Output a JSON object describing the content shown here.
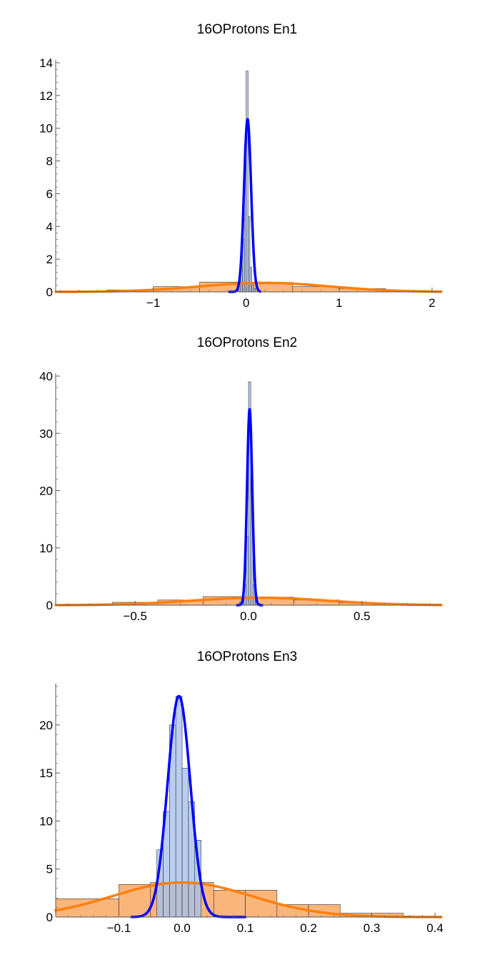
{
  "colors": {
    "orange_fill": "#f9ad6b",
    "orange_line": "#ff7f0e",
    "blue_fill": "#a8c1ed",
    "blue_line": "#0000ff",
    "bar_stroke": "#333333"
  },
  "chart_data": [
    {
      "type": "bar",
      "title": "16OProtons En1",
      "xlim": [
        -2.05,
        2.1
      ],
      "ylim": [
        0,
        14
      ],
      "xticks": [
        -1,
        0,
        1,
        2
      ],
      "xtick_labels": [
        "−1",
        "0",
        "1",
        "2"
      ],
      "yticks": [
        0,
        2,
        4,
        6,
        8,
        10,
        12,
        14
      ],
      "ytick_labels": [
        "0",
        "2",
        "4",
        "6",
        "8",
        "10",
        "12",
        "14"
      ],
      "grid": false,
      "series": [
        {
          "kind": "histogram",
          "color": "orange",
          "edges": [
            -2.0,
            -1.5,
            -1.0,
            -0.5,
            0.0,
            0.5,
            1.0,
            1.5,
            2.0
          ],
          "values": [
            0.05,
            0.12,
            0.32,
            0.6,
            0.58,
            0.32,
            0.2,
            0.08
          ]
        },
        {
          "kind": "density",
          "color": "orange",
          "mu": 0.2,
          "sigma": 0.7,
          "peak": 0.55
        },
        {
          "kind": "histogram",
          "color": "blue",
          "edges": [
            -0.1,
            -0.08,
            -0.06,
            -0.04,
            -0.02,
            0.0,
            0.02,
            0.04,
            0.06,
            0.08,
            0.1
          ],
          "values": [
            0.2,
            0.5,
            1.5,
            3.2,
            9.0,
            13.5,
            4.6,
            1.5,
            0.4,
            0.2
          ]
        },
        {
          "kind": "density",
          "color": "blue",
          "mu": 0.015,
          "sigma": 0.038,
          "peak": 10.55,
          "domain": [
            -0.18,
            0.15
          ]
        }
      ]
    },
    {
      "type": "bar",
      "title": "16OProtons En2",
      "xlim": [
        -0.85,
        0.85
      ],
      "ylim": [
        0,
        40
      ],
      "xticks": [
        -0.5,
        0.0,
        0.5
      ],
      "xtick_labels": [
        "−0.5",
        "0.0",
        "0.5"
      ],
      "yticks": [
        0,
        10,
        20,
        30,
        40
      ],
      "ytick_labels": [
        "0",
        "10",
        "20",
        "30",
        "40"
      ],
      "grid": false,
      "series": [
        {
          "kind": "histogram",
          "color": "orange",
          "edges": [
            -0.8,
            -0.6,
            -0.4,
            -0.2,
            0.0,
            0.2,
            0.4,
            0.6,
            0.8
          ],
          "values": [
            0.2,
            0.5,
            0.9,
            1.5,
            1.4,
            0.9,
            0.4,
            0.15
          ]
        },
        {
          "kind": "density",
          "color": "orange",
          "mu": 0.05,
          "sigma": 0.3,
          "peak": 1.3
        },
        {
          "kind": "histogram",
          "color": "blue",
          "edges": [
            -0.04,
            -0.03,
            -0.02,
            -0.01,
            0.0,
            0.01,
            0.02,
            0.03,
            0.04,
            0.05
          ],
          "values": [
            0.5,
            1.5,
            3.5,
            12.0,
            39.0,
            22.0,
            3.5,
            1.0,
            0.3
          ]
        },
        {
          "kind": "density",
          "color": "blue",
          "mu": 0.005,
          "sigma": 0.0115,
          "peak": 34.2,
          "domain": [
            -0.05,
            0.06
          ]
        }
      ]
    },
    {
      "type": "bar",
      "title": "16OProtons En3",
      "xlim": [
        -0.2,
        0.41
      ],
      "ylim": [
        0,
        24
      ],
      "xticks": [
        -0.1,
        0.0,
        0.1,
        0.2,
        0.3,
        0.4
      ],
      "xtick_labels": [
        "−0.1",
        "0.0",
        "0.1",
        "0.2",
        "0.3",
        "0.4"
      ],
      "yticks": [
        0,
        5,
        10,
        15,
        20
      ],
      "ytick_labels": [
        "0",
        "5",
        "10",
        "15",
        "20"
      ],
      "grid": false,
      "series": [
        {
          "kind": "histogram",
          "color": "orange",
          "edges": [
            -0.2,
            -0.1,
            -0.05,
            0.0,
            0.05,
            0.1,
            0.15,
            0.2,
            0.25,
            0.3,
            0.35
          ],
          "values": [
            1.9,
            3.4,
            3.6,
            3.6,
            2.8,
            2.8,
            1.3,
            1.3,
            0.4,
            0.4
          ]
        },
        {
          "kind": "density",
          "color": "orange",
          "mu": 0.0,
          "sigma": 0.11,
          "peak": 3.6
        },
        {
          "kind": "histogram",
          "color": "blue",
          "edges": [
            -0.04,
            -0.03,
            -0.02,
            -0.01,
            0.0,
            0.01,
            0.02,
            0.03
          ],
          "values": [
            7.0,
            11.0,
            20.0,
            23.0,
            15.5,
            12.0,
            8.0
          ]
        },
        {
          "kind": "density",
          "color": "blue",
          "mu": -0.005,
          "sigma": 0.018,
          "peak": 23.0,
          "domain": [
            -0.08,
            0.1
          ]
        }
      ]
    }
  ]
}
